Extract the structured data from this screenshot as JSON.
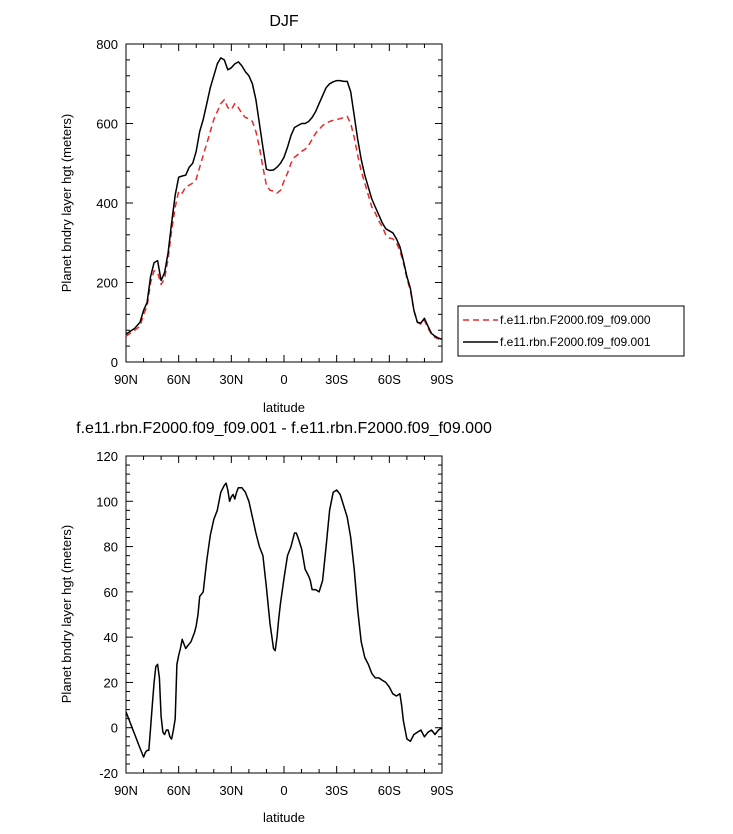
{
  "chart_data": [
    {
      "type": "line",
      "title": "DJF",
      "xlabel": "latitude",
      "ylabel": "Planet bndry layer hgt (meters)",
      "xlim": [
        90,
        -90
      ],
      "ylim": [
        0,
        800
      ],
      "xticks": [
        90,
        60,
        30,
        0,
        -30,
        -60,
        -90
      ],
      "xticklabels": [
        "90N",
        "60N",
        "30N",
        "0",
        "30S",
        "60S",
        "90S"
      ],
      "yticks": [
        0,
        200,
        400,
        600,
        800
      ],
      "yticklabels": [
        "0",
        "200",
        "400",
        "600",
        "800"
      ],
      "grid": false,
      "legend_position": "right",
      "series": [
        {
          "name": "f.e11.rbn.F2000.f09_f09.000",
          "color": "#e32b2b",
          "dash": "dashed",
          "x": [
            90,
            85,
            82,
            80,
            78,
            76,
            74,
            72,
            70,
            68,
            66,
            64,
            62,
            60,
            58,
            56,
            54,
            52,
            50,
            48,
            46,
            44,
            42,
            40,
            38,
            36,
            34,
            32,
            30,
            28,
            26,
            24,
            22,
            20,
            18,
            16,
            14,
            12,
            10,
            8,
            6,
            4,
            2,
            0,
            -2,
            -4,
            -6,
            -8,
            -10,
            -12,
            -14,
            -16,
            -18,
            -20,
            -22,
            -24,
            -26,
            -28,
            -30,
            -32,
            -34,
            -36,
            -38,
            -40,
            -42,
            -44,
            -46,
            -48,
            -50,
            -52,
            -54,
            -56,
            -58,
            -60,
            -62,
            -64,
            -66,
            -68,
            -70,
            -72,
            -74,
            -76,
            -78,
            -80,
            -82,
            -84,
            -86,
            -88,
            -90
          ],
          "y": [
            65,
            80,
            90,
            120,
            140,
            200,
            230,
            225,
            195,
            210,
            260,
            330,
            390,
            430,
            425,
            440,
            445,
            450,
            460,
            490,
            520,
            550,
            580,
            610,
            630,
            650,
            660,
            640,
            635,
            650,
            640,
            625,
            615,
            612,
            605,
            580,
            540,
            490,
            445,
            432,
            430,
            425,
            432,
            455,
            475,
            500,
            515,
            522,
            530,
            535,
            545,
            560,
            575,
            585,
            595,
            600,
            605,
            608,
            610,
            612,
            615,
            618,
            600,
            565,
            520,
            480,
            450,
            420,
            390,
            375,
            355,
            340,
            320,
            312,
            310,
            300,
            280,
            250,
            210,
            180,
            130,
            100,
            95,
            105,
            85,
            70,
            62,
            58,
            55
          ]
        },
        {
          "name": "f.e11.rbn.F2000.f09_f09.001",
          "color": "#000000",
          "dash": "solid",
          "x": [
            90,
            85,
            82,
            80,
            78,
            76,
            74,
            72,
            70,
            68,
            66,
            64,
            62,
            60,
            58,
            56,
            54,
            52,
            50,
            48,
            46,
            44,
            42,
            40,
            38,
            36,
            34,
            32,
            30,
            28,
            26,
            24,
            22,
            20,
            18,
            16,
            14,
            12,
            10,
            8,
            6,
            4,
            2,
            0,
            -2,
            -4,
            -6,
            -8,
            -10,
            -12,
            -14,
            -16,
            -18,
            -20,
            -22,
            -24,
            -26,
            -28,
            -30,
            -32,
            -34,
            -36,
            -38,
            -40,
            -42,
            -44,
            -46,
            -48,
            -50,
            -52,
            -54,
            -56,
            -58,
            -60,
            -62,
            -64,
            -66,
            -68,
            -70,
            -72,
            -74,
            -76,
            -78,
            -80,
            -82,
            -84,
            -86,
            -88,
            -90
          ],
          "y": [
            70,
            85,
            100,
            130,
            150,
            215,
            250,
            255,
            205,
            225,
            275,
            350,
            420,
            465,
            468,
            470,
            490,
            500,
            530,
            580,
            610,
            650,
            690,
            720,
            750,
            765,
            760,
            735,
            740,
            750,
            755,
            745,
            730,
            720,
            700,
            660,
            600,
            540,
            485,
            482,
            483,
            490,
            500,
            515,
            540,
            570,
            590,
            595,
            600,
            600,
            605,
            615,
            630,
            650,
            670,
            690,
            700,
            705,
            708,
            708,
            706,
            706,
            680,
            620,
            560,
            510,
            470,
            440,
            410,
            390,
            370,
            350,
            335,
            330,
            325,
            310,
            290,
            255,
            215,
            185,
            130,
            100,
            98,
            110,
            90,
            72,
            65,
            60,
            57
          ]
        }
      ]
    },
    {
      "type": "line",
      "title": "f.e11.rbn.F2000.f09_f09.001 - f.e11.rbn.F2000.f09_f09.000",
      "xlabel": "latitude",
      "ylabel": "Planet bndry layer hgt (meters)",
      "xlim": [
        90,
        -90
      ],
      "ylim": [
        -20,
        120
      ],
      "xticks": [
        90,
        60,
        30,
        0,
        -30,
        -60,
        -90
      ],
      "xticklabels": [
        "90N",
        "60N",
        "30N",
        "0",
        "30S",
        "60S",
        "90S"
      ],
      "yticks": [
        -20,
        0,
        20,
        40,
        60,
        80,
        100,
        120
      ],
      "yticklabels": [
        "-20",
        "0",
        "20",
        "40",
        "60",
        "80",
        "100",
        "120"
      ],
      "grid": false,
      "series": [
        {
          "color": "#000000",
          "dash": "solid",
          "x": [
            90,
            88,
            86,
            84,
            82,
            80,
            79,
            78,
            77,
            76,
            75,
            74,
            73,
            72,
            71,
            70,
            69,
            68,
            67,
            66,
            65,
            64,
            63,
            62,
            61,
            60,
            59,
            58,
            57,
            56,
            55,
            54,
            53,
            52,
            51,
            50,
            49,
            48,
            46,
            44,
            42,
            40,
            38,
            36,
            34,
            33,
            32,
            31,
            30,
            29,
            28,
            27,
            26,
            25,
            24,
            23,
            22,
            21,
            20,
            18,
            16,
            14,
            12,
            10,
            8,
            6,
            5,
            4,
            3,
            2,
            0,
            -2,
            -4,
            -6,
            -7,
            -8,
            -10,
            -12,
            -14,
            -15,
            -16,
            -18,
            -20,
            -22,
            -24,
            -26,
            -28,
            -30,
            -32,
            -34,
            -36,
            -38,
            -40,
            -42,
            -44,
            -46,
            -48,
            -50,
            -52,
            -54,
            -56,
            -58,
            -60,
            -62,
            -64,
            -66,
            -67,
            -68,
            -70,
            -72,
            -74,
            -76,
            -78,
            -80,
            -82,
            -84,
            -86,
            -88,
            -90
          ],
          "y": [
            7,
            3,
            -1,
            -5,
            -9,
            -13,
            -11,
            -10,
            -10,
            0,
            10,
            20,
            27,
            28,
            22,
            5,
            -2,
            -3,
            -1,
            -1,
            -4,
            -5,
            -1,
            4,
            28,
            32,
            35,
            39,
            37,
            35,
            36,
            37,
            38,
            40,
            42,
            45,
            50,
            58,
            60,
            74,
            85,
            92,
            96,
            104,
            107,
            108,
            105,
            100,
            102,
            103,
            101,
            104,
            106,
            106,
            106,
            105,
            104,
            102,
            100,
            93,
            86,
            80,
            76,
            62,
            46,
            35,
            34,
            40,
            48,
            55,
            66,
            76,
            80,
            86,
            86,
            84,
            79,
            70,
            67,
            65,
            61,
            61,
            60,
            65,
            80,
            96,
            104,
            105,
            103,
            98,
            93,
            84,
            70,
            52,
            38,
            31,
            28,
            24,
            22,
            22,
            21,
            20,
            18,
            15,
            14,
            15,
            10,
            3,
            -5,
            -6,
            -3,
            -2,
            -1,
            -4,
            -2,
            -1,
            -3,
            -1,
            0
          ]
        }
      ]
    }
  ]
}
